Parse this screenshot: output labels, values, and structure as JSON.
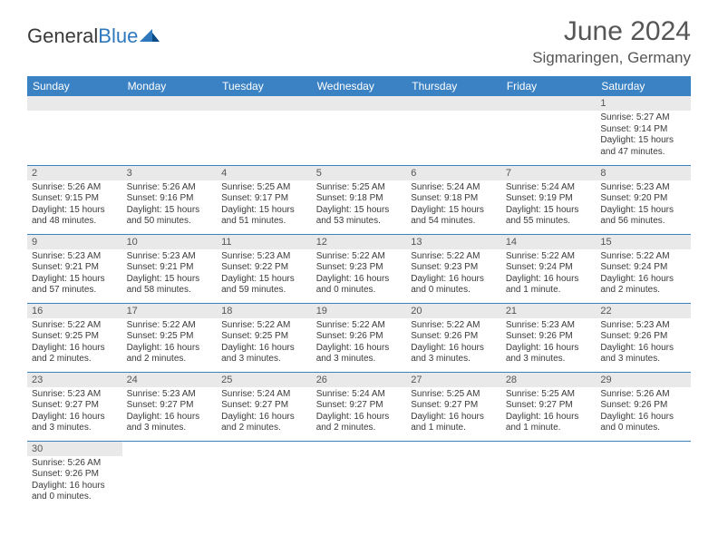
{
  "brand": {
    "part1": "General",
    "part2": "Blue",
    "color1": "#3a3a3a",
    "color2": "#2f78bd"
  },
  "title": "June 2024",
  "location": "Sigmaringen, Germany",
  "colors": {
    "header_bg": "#3b82c4",
    "header_text": "#ffffff",
    "daynum_bg": "#e9e9e9",
    "border": "#3b82c4",
    "text": "#3a3a3a"
  },
  "days_of_week": [
    "Sunday",
    "Monday",
    "Tuesday",
    "Wednesday",
    "Thursday",
    "Friday",
    "Saturday"
  ],
  "weeks": [
    [
      null,
      null,
      null,
      null,
      null,
      null,
      {
        "n": "1",
        "sunrise": "5:27 AM",
        "sunset": "9:14 PM",
        "daylight": "15 hours and 47 minutes."
      }
    ],
    [
      {
        "n": "2",
        "sunrise": "5:26 AM",
        "sunset": "9:15 PM",
        "daylight": "15 hours and 48 minutes."
      },
      {
        "n": "3",
        "sunrise": "5:26 AM",
        "sunset": "9:16 PM",
        "daylight": "15 hours and 50 minutes."
      },
      {
        "n": "4",
        "sunrise": "5:25 AM",
        "sunset": "9:17 PM",
        "daylight": "15 hours and 51 minutes."
      },
      {
        "n": "5",
        "sunrise": "5:25 AM",
        "sunset": "9:18 PM",
        "daylight": "15 hours and 53 minutes."
      },
      {
        "n": "6",
        "sunrise": "5:24 AM",
        "sunset": "9:18 PM",
        "daylight": "15 hours and 54 minutes."
      },
      {
        "n": "7",
        "sunrise": "5:24 AM",
        "sunset": "9:19 PM",
        "daylight": "15 hours and 55 minutes."
      },
      {
        "n": "8",
        "sunrise": "5:23 AM",
        "sunset": "9:20 PM",
        "daylight": "15 hours and 56 minutes."
      }
    ],
    [
      {
        "n": "9",
        "sunrise": "5:23 AM",
        "sunset": "9:21 PM",
        "daylight": "15 hours and 57 minutes."
      },
      {
        "n": "10",
        "sunrise": "5:23 AM",
        "sunset": "9:21 PM",
        "daylight": "15 hours and 58 minutes."
      },
      {
        "n": "11",
        "sunrise": "5:23 AM",
        "sunset": "9:22 PM",
        "daylight": "15 hours and 59 minutes."
      },
      {
        "n": "12",
        "sunrise": "5:22 AM",
        "sunset": "9:23 PM",
        "daylight": "16 hours and 0 minutes."
      },
      {
        "n": "13",
        "sunrise": "5:22 AM",
        "sunset": "9:23 PM",
        "daylight": "16 hours and 0 minutes."
      },
      {
        "n": "14",
        "sunrise": "5:22 AM",
        "sunset": "9:24 PM",
        "daylight": "16 hours and 1 minute."
      },
      {
        "n": "15",
        "sunrise": "5:22 AM",
        "sunset": "9:24 PM",
        "daylight": "16 hours and 2 minutes."
      }
    ],
    [
      {
        "n": "16",
        "sunrise": "5:22 AM",
        "sunset": "9:25 PM",
        "daylight": "16 hours and 2 minutes."
      },
      {
        "n": "17",
        "sunrise": "5:22 AM",
        "sunset": "9:25 PM",
        "daylight": "16 hours and 2 minutes."
      },
      {
        "n": "18",
        "sunrise": "5:22 AM",
        "sunset": "9:25 PM",
        "daylight": "16 hours and 3 minutes."
      },
      {
        "n": "19",
        "sunrise": "5:22 AM",
        "sunset": "9:26 PM",
        "daylight": "16 hours and 3 minutes."
      },
      {
        "n": "20",
        "sunrise": "5:22 AM",
        "sunset": "9:26 PM",
        "daylight": "16 hours and 3 minutes."
      },
      {
        "n": "21",
        "sunrise": "5:23 AM",
        "sunset": "9:26 PM",
        "daylight": "16 hours and 3 minutes."
      },
      {
        "n": "22",
        "sunrise": "5:23 AM",
        "sunset": "9:26 PM",
        "daylight": "16 hours and 3 minutes."
      }
    ],
    [
      {
        "n": "23",
        "sunrise": "5:23 AM",
        "sunset": "9:27 PM",
        "daylight": "16 hours and 3 minutes."
      },
      {
        "n": "24",
        "sunrise": "5:23 AM",
        "sunset": "9:27 PM",
        "daylight": "16 hours and 3 minutes."
      },
      {
        "n": "25",
        "sunrise": "5:24 AM",
        "sunset": "9:27 PM",
        "daylight": "16 hours and 2 minutes."
      },
      {
        "n": "26",
        "sunrise": "5:24 AM",
        "sunset": "9:27 PM",
        "daylight": "16 hours and 2 minutes."
      },
      {
        "n": "27",
        "sunrise": "5:25 AM",
        "sunset": "9:27 PM",
        "daylight": "16 hours and 1 minute."
      },
      {
        "n": "28",
        "sunrise": "5:25 AM",
        "sunset": "9:27 PM",
        "daylight": "16 hours and 1 minute."
      },
      {
        "n": "29",
        "sunrise": "5:26 AM",
        "sunset": "9:26 PM",
        "daylight": "16 hours and 0 minutes."
      }
    ],
    [
      {
        "n": "30",
        "sunrise": "5:26 AM",
        "sunset": "9:26 PM",
        "daylight": "16 hours and 0 minutes."
      },
      null,
      null,
      null,
      null,
      null,
      null
    ]
  ],
  "labels": {
    "sunrise": "Sunrise:",
    "sunset": "Sunset:",
    "daylight": "Daylight:"
  }
}
